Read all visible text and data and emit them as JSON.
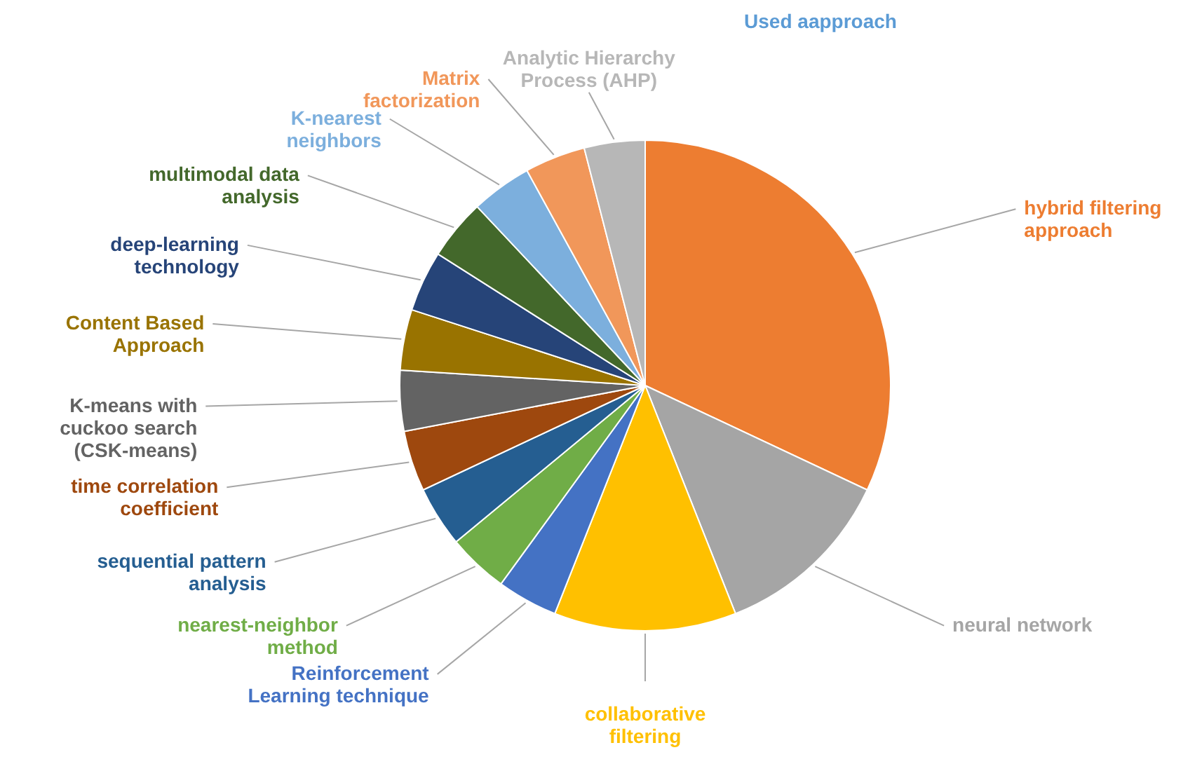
{
  "chart_data": {
    "type": "pie",
    "title": "Used aapproach",
    "categories": [
      "hybrid filtering\napproach",
      "neural network",
      "collaborative\nfiltering",
      "Reinforcement\nLearning technique",
      "nearest-neighbor\nmethod",
      "sequential pattern\nanalysis",
      "time correlation\ncoefficient",
      "K-means with\ncuckoo search\n(CSK-means)",
      "Content Based\nApproach",
      "deep-learning\ntechnology",
      "multimodal data\nanalysis",
      "K-nearest\nneighbors",
      "Matrix\nfactorization",
      "Analytic Hierarchy\nProcess (AHP)"
    ],
    "values": [
      32,
      12,
      12,
      4,
      4,
      4,
      4,
      4,
      4,
      4,
      4,
      4,
      4,
      4
    ],
    "colors": [
      "#ed7d31",
      "#a5a5a5",
      "#ffc000",
      "#4472c4",
      "#70ad47",
      "#255e91",
      "#9e480e",
      "#636363",
      "#997300",
      "#264478",
      "#43682b",
      "#7cafdd",
      "#f1975a",
      "#b7b7b7"
    ]
  }
}
